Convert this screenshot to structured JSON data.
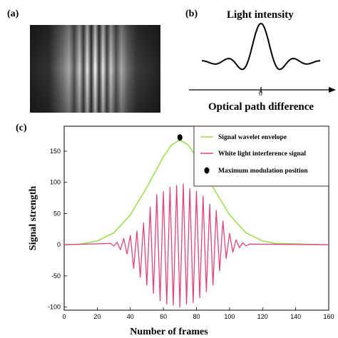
{
  "panels": {
    "a": {
      "label": "(a)"
    },
    "b": {
      "label": "(b)",
      "title": "Light intensity",
      "xlabel": "Optical path difference",
      "zero_label": "0"
    },
    "c": {
      "label": "(c)"
    }
  },
  "chart_data": {
    "type": "line",
    "xlabel": "Number of frames",
    "ylabel": "Signal strength",
    "xlim": [
      0,
      160
    ],
    "ylim": [
      -105,
      190
    ],
    "xticks": [
      0,
      20,
      40,
      60,
      80,
      100,
      120,
      140,
      160
    ],
    "yticks": [
      -100,
      -50,
      0,
      50,
      100,
      150
    ],
    "legend_position": "top-right",
    "series": [
      {
        "name": "Signal wavelet envelope",
        "color": "#99dd44",
        "x": [
          0,
          10,
          20,
          30,
          40,
          50,
          60,
          65,
          70,
          75,
          80,
          90,
          100,
          110,
          120,
          128,
          160
        ],
        "y": [
          0,
          1,
          6,
          19,
          48,
          92,
          141,
          160,
          168,
          160,
          141,
          92,
          48,
          19,
          6,
          2,
          0
        ]
      },
      {
        "name": "White light interference signal",
        "color": "#e0457a",
        "x": [
          0,
          28,
          30,
          32,
          34,
          36,
          38,
          40,
          42,
          44,
          46,
          48,
          50,
          52,
          54,
          56,
          58,
          60,
          62,
          64,
          66,
          68,
          70,
          72,
          74,
          76,
          78,
          80,
          82,
          84,
          86,
          88,
          90,
          92,
          94,
          96,
          98,
          100,
          102,
          104,
          106,
          108,
          110,
          112,
          160
        ],
        "y": [
          0,
          2,
          -2,
          4,
          -8,
          10,
          -15,
          15,
          -38,
          22,
          -52,
          35,
          -65,
          60,
          -78,
          80,
          -90,
          85,
          -95,
          92,
          -97,
          95,
          -100,
          97,
          -95,
          90,
          -93,
          86,
          -85,
          78,
          -75,
          65,
          -65,
          55,
          -42,
          38,
          -22,
          18,
          -12,
          8,
          -5,
          3,
          -2,
          1,
          0
        ]
      }
    ],
    "points": [
      {
        "name": "Maximum modulation position",
        "x": 70,
        "y": 172,
        "color": "#000000"
      }
    ]
  }
}
